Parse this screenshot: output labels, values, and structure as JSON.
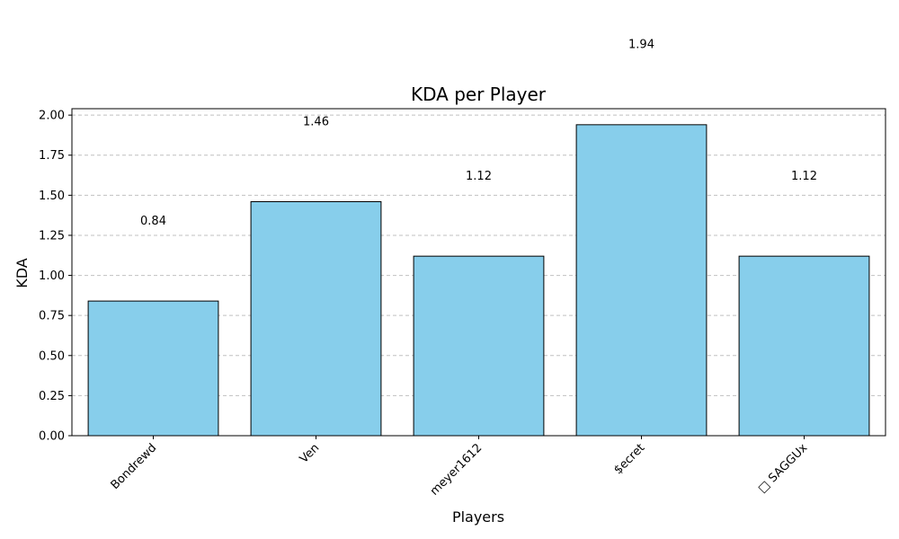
{
  "chart_data": {
    "type": "bar",
    "title": "KDA per Player",
    "xlabel": "Players",
    "ylabel": "KDA",
    "categories": [
      "Bondrewd",
      "Ven",
      "meyer1612",
      "$ecret",
      "□ SAGGUx"
    ],
    "values": [
      0.84,
      1.46,
      1.12,
      1.94,
      1.12
    ],
    "value_labels": [
      "0.84",
      "1.46",
      "1.12",
      "1.94",
      "1.12"
    ],
    "ylim": [
      0,
      2.04
    ],
    "yticks": [
      "0.00",
      "0.25",
      "0.50",
      "0.75",
      "1.00",
      "1.25",
      "1.50",
      "1.75",
      "2.00"
    ],
    "grid": "horizontal dashed",
    "colors": {
      "bar": "#87CEEB",
      "bar_edge": "#000000",
      "grid": "#c0c0c0"
    }
  }
}
